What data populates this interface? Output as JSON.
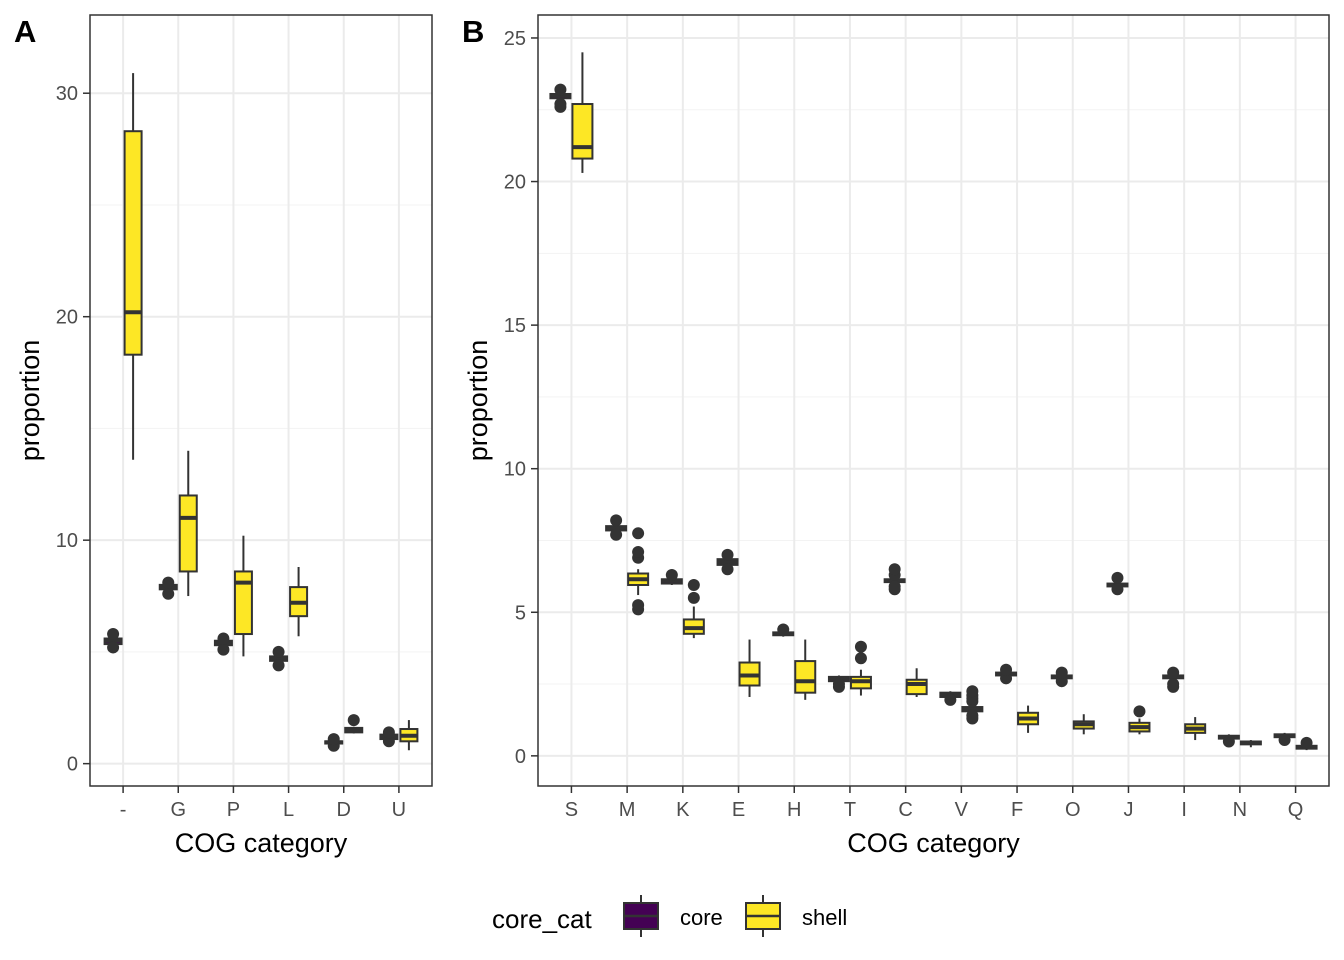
{
  "panels": [
    {
      "tag": "A",
      "chart_data": {
        "type": "box",
        "xlabel": "COG category",
        "ylabel": "proportion",
        "ylim": [
          -1,
          33.5
        ],
        "y_ticks": [
          0,
          10,
          20,
          30
        ],
        "categories": [
          "-",
          "G",
          "P",
          "L",
          "D",
          "U"
        ],
        "grid": true,
        "boxes": [
          {
            "category": "-",
            "group": "core",
            "q1": 5.35,
            "median": 5.5,
            "q3": 5.6,
            "whisker_low": 5.3,
            "whisker_high": 5.7,
            "outliers": [
              5.2,
              5.8
            ]
          },
          {
            "category": "-",
            "group": "shell",
            "q1": 18.3,
            "median": 20.2,
            "q3": 28.3,
            "whisker_low": 13.6,
            "whisker_high": 30.9,
            "outliers": []
          },
          {
            "category": "G",
            "group": "core",
            "q1": 7.8,
            "median": 7.9,
            "q3": 8.0,
            "whisker_low": 7.75,
            "whisker_high": 8.05,
            "outliers": [
              7.6,
              8.1
            ]
          },
          {
            "category": "G",
            "group": "shell",
            "q1": 8.6,
            "median": 11.0,
            "q3": 12.0,
            "whisker_low": 7.5,
            "whisker_high": 14.0,
            "outliers": []
          },
          {
            "category": "P",
            "group": "core",
            "q1": 5.3,
            "median": 5.4,
            "q3": 5.5,
            "whisker_low": 5.25,
            "whisker_high": 5.55,
            "outliers": [
              5.1,
              5.6
            ]
          },
          {
            "category": "P",
            "group": "shell",
            "q1": 5.8,
            "median": 8.1,
            "q3": 8.6,
            "whisker_low": 4.8,
            "whisker_high": 10.2,
            "outliers": []
          },
          {
            "category": "L",
            "group": "core",
            "q1": 4.6,
            "median": 4.7,
            "q3": 4.8,
            "whisker_low": 4.55,
            "whisker_high": 4.85,
            "outliers": [
              4.4,
              5.0
            ]
          },
          {
            "category": "L",
            "group": "shell",
            "q1": 6.6,
            "median": 7.2,
            "q3": 7.9,
            "whisker_low": 5.7,
            "whisker_high": 8.8,
            "outliers": []
          },
          {
            "category": "D",
            "group": "core",
            "q1": 0.9,
            "median": 0.95,
            "q3": 1.0,
            "whisker_low": 0.85,
            "whisker_high": 1.05,
            "outliers": [
              0.8,
              1.1
            ]
          },
          {
            "category": "D",
            "group": "shell",
            "q1": 1.4,
            "median": 1.5,
            "q3": 1.6,
            "whisker_low": 1.35,
            "whisker_high": 1.65,
            "outliers": [
              1.95
            ]
          },
          {
            "category": "U",
            "group": "core",
            "q1": 1.1,
            "median": 1.2,
            "q3": 1.3,
            "whisker_low": 1.05,
            "whisker_high": 1.35,
            "outliers": [
              1.0,
              1.4
            ]
          },
          {
            "category": "U",
            "group": "shell",
            "q1": 1.0,
            "median": 1.25,
            "q3": 1.55,
            "whisker_low": 0.6,
            "whisker_high": 1.95,
            "outliers": []
          }
        ]
      }
    },
    {
      "tag": "B",
      "chart_data": {
        "type": "box",
        "xlabel": "COG category",
        "ylabel": "proportion",
        "ylim": [
          -1.05,
          25.8
        ],
        "y_ticks": [
          0,
          5,
          10,
          15,
          20,
          25
        ],
        "categories": [
          "S",
          "M",
          "K",
          "E",
          "H",
          "T",
          "C",
          "V",
          "F",
          "O",
          "J",
          "I",
          "N",
          "Q"
        ],
        "grid": true,
        "boxes": [
          {
            "category": "S",
            "group": "core",
            "q1": 22.9,
            "median": 23.0,
            "q3": 23.05,
            "whisker_low": 22.85,
            "whisker_high": 23.1,
            "outliers": [
              22.6,
              22.7,
              23.2
            ]
          },
          {
            "category": "S",
            "group": "shell",
            "q1": 20.8,
            "median": 21.2,
            "q3": 22.7,
            "whisker_low": 20.3,
            "whisker_high": 24.5,
            "outliers": []
          },
          {
            "category": "M",
            "group": "core",
            "q1": 7.85,
            "median": 7.95,
            "q3": 8.0,
            "whisker_low": 7.8,
            "whisker_high": 8.05,
            "outliers": [
              7.7,
              8.2
            ]
          },
          {
            "category": "M",
            "group": "shell",
            "q1": 5.95,
            "median": 6.15,
            "q3": 6.35,
            "whisker_low": 5.6,
            "whisker_high": 6.5,
            "outliers": [
              5.1,
              5.25,
              6.9,
              7.1,
              7.75
            ]
          },
          {
            "category": "K",
            "group": "core",
            "q1": 6.0,
            "median": 6.1,
            "q3": 6.15,
            "whisker_low": 5.95,
            "whisker_high": 6.2,
            "outliers": [
              6.3
            ]
          },
          {
            "category": "K",
            "group": "shell",
            "q1": 4.25,
            "median": 4.45,
            "q3": 4.75,
            "whisker_low": 4.1,
            "whisker_high": 5.2,
            "outliers": [
              5.5,
              5.95
            ]
          },
          {
            "category": "E",
            "group": "core",
            "q1": 6.65,
            "median": 6.75,
            "q3": 6.85,
            "whisker_low": 6.6,
            "whisker_high": 6.9,
            "outliers": [
              6.5,
              7.0
            ]
          },
          {
            "category": "E",
            "group": "shell",
            "q1": 2.45,
            "median": 2.8,
            "q3": 3.25,
            "whisker_low": 2.05,
            "whisker_high": 4.05,
            "outliers": []
          },
          {
            "category": "H",
            "group": "core",
            "q1": 4.2,
            "median": 4.25,
            "q3": 4.3,
            "whisker_low": 4.15,
            "whisker_high": 4.35,
            "outliers": [
              4.4
            ]
          },
          {
            "category": "H",
            "group": "shell",
            "q1": 2.2,
            "median": 2.6,
            "q3": 3.3,
            "whisker_low": 1.95,
            "whisker_high": 4.05,
            "outliers": []
          },
          {
            "category": "T",
            "group": "core",
            "q1": 2.6,
            "median": 2.7,
            "q3": 2.75,
            "whisker_low": 2.55,
            "whisker_high": 2.8,
            "outliers": [
              2.4,
              2.5
            ]
          },
          {
            "category": "T",
            "group": "shell",
            "q1": 2.35,
            "median": 2.6,
            "q3": 2.75,
            "whisker_low": 2.1,
            "whisker_high": 3.0,
            "outliers": [
              3.4,
              3.8
            ]
          },
          {
            "category": "C",
            "group": "core",
            "q1": 6.05,
            "median": 6.1,
            "q3": 6.15,
            "whisker_low": 6.0,
            "whisker_high": 6.2,
            "outliers": [
              5.8,
              5.9,
              6.3,
              6.5
            ]
          },
          {
            "category": "C",
            "group": "shell",
            "q1": 2.15,
            "median": 2.5,
            "q3": 2.65,
            "whisker_low": 2.05,
            "whisker_high": 3.05,
            "outliers": []
          },
          {
            "category": "V",
            "group": "core",
            "q1": 2.05,
            "median": 2.15,
            "q3": 2.2,
            "whisker_low": 2.0,
            "whisker_high": 2.25,
            "outliers": [
              1.95
            ]
          },
          {
            "category": "V",
            "group": "shell",
            "q1": 1.55,
            "median": 1.6,
            "q3": 1.7,
            "whisker_low": 1.5,
            "whisker_high": 1.75,
            "outliers": [
              1.3,
              1.4,
              1.9,
              2.0,
              2.1,
              2.25
            ]
          },
          {
            "category": "F",
            "group": "core",
            "q1": 2.8,
            "median": 2.85,
            "q3": 2.9,
            "whisker_low": 2.75,
            "whisker_high": 2.95,
            "outliers": [
              2.7,
              3.0
            ]
          },
          {
            "category": "F",
            "group": "shell",
            "q1": 1.1,
            "median": 1.3,
            "q3": 1.5,
            "whisker_low": 0.8,
            "whisker_high": 1.75,
            "outliers": []
          },
          {
            "category": "O",
            "group": "core",
            "q1": 2.7,
            "median": 2.75,
            "q3": 2.8,
            "whisker_low": 2.65,
            "whisker_high": 2.85,
            "outliers": [
              2.6,
              2.9
            ]
          },
          {
            "category": "O",
            "group": "shell",
            "q1": 0.95,
            "median": 1.1,
            "q3": 1.2,
            "whisker_low": 0.75,
            "whisker_high": 1.45,
            "outliers": []
          },
          {
            "category": "J",
            "group": "core",
            "q1": 5.9,
            "median": 5.95,
            "q3": 6.0,
            "whisker_low": 5.85,
            "whisker_high": 6.05,
            "outliers": [
              5.8,
              6.2
            ]
          },
          {
            "category": "J",
            "group": "shell",
            "q1": 0.85,
            "median": 1.0,
            "q3": 1.15,
            "whisker_low": 0.75,
            "whisker_high": 1.3,
            "outliers": [
              1.55
            ]
          },
          {
            "category": "I",
            "group": "core",
            "q1": 2.7,
            "median": 2.75,
            "q3": 2.8,
            "whisker_low": 2.65,
            "whisker_high": 2.85,
            "outliers": [
              2.4,
              2.5,
              2.9
            ]
          },
          {
            "category": "I",
            "group": "shell",
            "q1": 0.8,
            "median": 0.95,
            "q3": 1.1,
            "whisker_low": 0.55,
            "whisker_high": 1.35,
            "outliers": []
          },
          {
            "category": "N",
            "group": "core",
            "q1": 0.6,
            "median": 0.65,
            "q3": 0.7,
            "whisker_low": 0.55,
            "whisker_high": 0.75,
            "outliers": [
              0.5
            ]
          },
          {
            "category": "N",
            "group": "shell",
            "q1": 0.4,
            "median": 0.45,
            "q3": 0.5,
            "whisker_low": 0.3,
            "whisker_high": 0.55,
            "outliers": []
          },
          {
            "category": "Q",
            "group": "core",
            "q1": 0.65,
            "median": 0.7,
            "q3": 0.75,
            "whisker_low": 0.6,
            "whisker_high": 0.8,
            "outliers": [
              0.55
            ]
          },
          {
            "category": "Q",
            "group": "shell",
            "q1": 0.25,
            "median": 0.3,
            "q3": 0.35,
            "whisker_low": 0.2,
            "whisker_high": 0.4,
            "outliers": [
              0.45
            ]
          }
        ]
      }
    }
  ],
  "legend": {
    "title": "core_cat",
    "placement": "bottom",
    "items": [
      {
        "label": "core",
        "color": "#440154"
      },
      {
        "label": "shell",
        "color": "#FDE725"
      }
    ]
  },
  "colors": {
    "core": "#440154",
    "shell": "#FDE725",
    "line": "#333333",
    "grid": "#EBEBEB",
    "panel_border": "#333333"
  }
}
